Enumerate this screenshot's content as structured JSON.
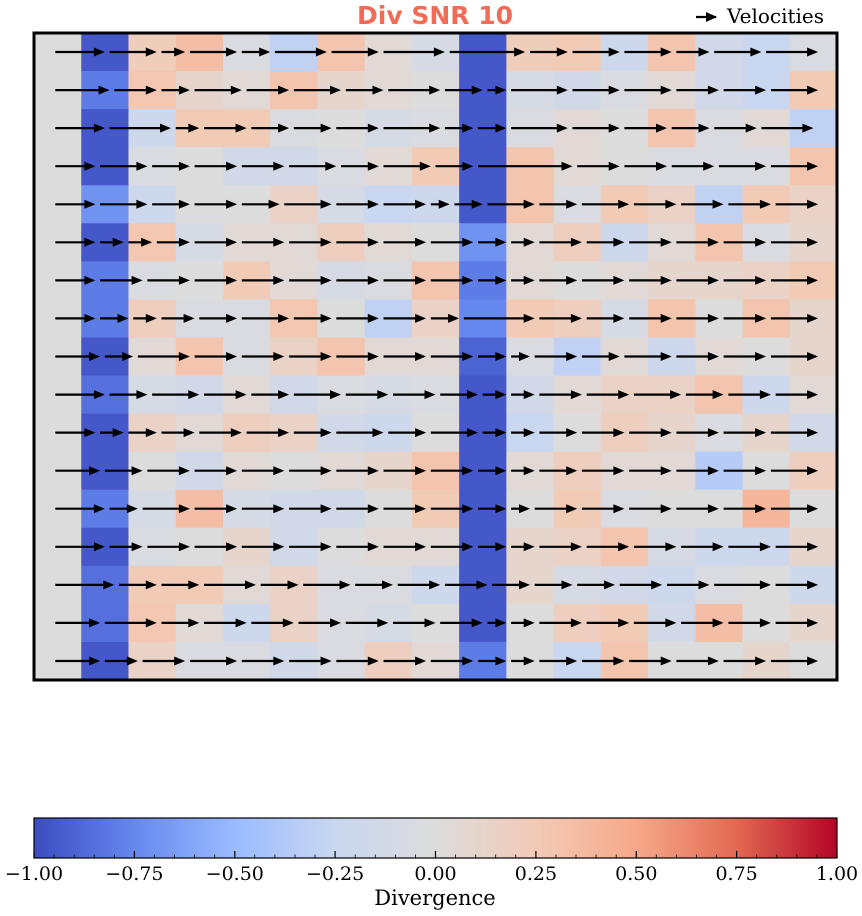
{
  "chart_data": {
    "type": "heatmap",
    "title": "Div SNR 10",
    "title_color": "#f26b55",
    "legend": {
      "label": "Velocities",
      "placement": "top-right"
    },
    "grid": false,
    "rows": 17,
    "cols": 17,
    "divergence": [
      [
        0.0,
        -0.95,
        0.22,
        0.35,
        -0.05,
        -0.3,
        0.3,
        0.05,
        -0.1,
        -0.95,
        0.22,
        0.25,
        -0.2,
        0.3,
        -0.15,
        -0.25,
        -0.05
      ],
      [
        0.0,
        -0.8,
        0.28,
        0.1,
        0.05,
        0.3,
        0.1,
        0.05,
        0.0,
        -0.95,
        -0.1,
        -0.15,
        -0.05,
        0.05,
        -0.15,
        -0.25,
        0.25
      ],
      [
        0.0,
        -0.95,
        -0.2,
        0.25,
        0.25,
        -0.05,
        0.0,
        -0.1,
        -0.05,
        -0.95,
        -0.05,
        0.05,
        0.0,
        0.3,
        -0.05,
        0.05,
        -0.3
      ],
      [
        0.0,
        -0.95,
        -0.05,
        0.0,
        -0.15,
        -0.15,
        -0.05,
        0.05,
        0.25,
        -0.95,
        0.3,
        0.05,
        0.0,
        -0.05,
        -0.05,
        -0.05,
        0.3
      ],
      [
        0.0,
        -0.7,
        -0.2,
        0.0,
        0.0,
        0.15,
        -0.1,
        -0.25,
        -0.2,
        -0.95,
        0.3,
        -0.05,
        0.25,
        0.15,
        -0.3,
        0.25,
        0.15
      ],
      [
        0.0,
        -0.95,
        0.28,
        -0.1,
        0.05,
        0.05,
        0.2,
        0.05,
        0.0,
        -0.7,
        0.05,
        0.2,
        -0.2,
        0.05,
        0.3,
        -0.05,
        0.1
      ],
      [
        0.0,
        -0.8,
        -0.05,
        0.0,
        0.25,
        0.05,
        -0.1,
        -0.05,
        0.3,
        -0.8,
        0.05,
        0.0,
        0.05,
        0.1,
        0.1,
        0.15,
        0.25
      ],
      [
        0.0,
        -0.8,
        0.2,
        -0.05,
        -0.05,
        0.28,
        0.0,
        -0.3,
        0.15,
        -0.75,
        0.25,
        0.2,
        -0.1,
        0.3,
        0.0,
        0.3,
        0.1
      ],
      [
        0.0,
        -0.95,
        0.05,
        0.3,
        -0.05,
        0.15,
        0.3,
        0.05,
        0.05,
        -0.9,
        -0.05,
        -0.3,
        0.05,
        -0.2,
        0.05,
        0.0,
        0.1
      ],
      [
        0.0,
        -0.85,
        -0.1,
        -0.15,
        0.05,
        -0.15,
        -0.05,
        -0.1,
        -0.05,
        -0.95,
        -0.15,
        0.05,
        0.15,
        0.15,
        0.3,
        -0.2,
        0.05
      ],
      [
        0.0,
        -0.95,
        0.15,
        0.05,
        0.2,
        0.15,
        -0.15,
        -0.2,
        0.0,
        -0.95,
        -0.25,
        0.0,
        0.2,
        0.1,
        -0.05,
        0.1,
        -0.15
      ],
      [
        0.0,
        -0.95,
        0.0,
        -0.15,
        0.05,
        0.0,
        0.05,
        0.1,
        0.3,
        -0.95,
        0.05,
        0.2,
        0.05,
        0.05,
        -0.35,
        0.0,
        0.2
      ],
      [
        0.0,
        -0.8,
        -0.1,
        0.35,
        -0.1,
        -0.15,
        -0.15,
        0.0,
        0.25,
        -0.95,
        0.0,
        0.25,
        -0.05,
        0.0,
        0.0,
        0.4,
        0.0
      ],
      [
        0.0,
        -0.95,
        -0.05,
        0.0,
        0.1,
        -0.15,
        0.0,
        0.05,
        0.05,
        -0.95,
        0.1,
        0.15,
        0.3,
        -0.1,
        -0.2,
        -0.2,
        0.1
      ],
      [
        0.0,
        -0.85,
        0.25,
        0.25,
        0.05,
        0.15,
        -0.05,
        -0.05,
        -0.2,
        -0.95,
        0.1,
        -0.1,
        -0.15,
        -0.2,
        -0.05,
        0.0,
        -0.2
      ],
      [
        0.0,
        -0.85,
        0.28,
        0.05,
        -0.2,
        0.15,
        -0.05,
        -0.1,
        0.0,
        -0.95,
        0.0,
        0.2,
        0.25,
        -0.15,
        0.35,
        0.0,
        0.1
      ],
      [
        0.0,
        -0.95,
        0.15,
        -0.05,
        -0.05,
        -0.15,
        -0.05,
        0.2,
        0.05,
        -0.8,
        0.0,
        -0.25,
        0.3,
        0.0,
        0.0,
        0.1,
        0.0
      ]
    ],
    "velocity_row_ends": [
      [
        1.5,
        2.6,
        3.2,
        4.3,
        5.0,
        6.2,
        7.3,
        8.7,
        10.4,
        11.3,
        12.4,
        13.5,
        14.3,
        15.4,
        16.6
      ],
      [
        1.6,
        2.6,
        3.3,
        4.4,
        5.4,
        6.5,
        7.4,
        8.6,
        9.5,
        10.0,
        11.3,
        12.4,
        13.5,
        14.5,
        15.5,
        16.6
      ],
      [
        1.5,
        2.9,
        3.5,
        4.5,
        5.4,
        6.3,
        7.3,
        8.6,
        9.3,
        10.0,
        11.3,
        12.4,
        13.4,
        14.3,
        15.3,
        16.5
      ],
      [
        1.3,
        2.4,
        3.3,
        4.3,
        5.3,
        6.4,
        7.3,
        8.4,
        9.3,
        11.4,
        12.4,
        13.4,
        14.4,
        15.5,
        16.6
      ],
      [
        1.3,
        2.4,
        3.3,
        4.3,
        5.2,
        6.3,
        7.3,
        8.3,
        8.8,
        9.5,
        10.6,
        11.5,
        12.6,
        13.6,
        14.6,
        15.6,
        16.6
      ],
      [
        1.3,
        1.9,
        2.5,
        3.3,
        4.3,
        5.3,
        6.3,
        7.3,
        8.3,
        9.3,
        10.0,
        10.6,
        11.6,
        12.5,
        13.5,
        14.5,
        15.5,
        16.6
      ],
      [
        1.3,
        2.3,
        3.3,
        4.3,
        5.3,
        6.3,
        7.3,
        8.3,
        9.3,
        10.0,
        10.6,
        11.5,
        12.5,
        13.5,
        14.5,
        15.5,
        16.6
      ],
      [
        1.3,
        2.0,
        2.6,
        3.4,
        4.3,
        5.4,
        6.3,
        7.3,
        8.3,
        9.0,
        10.6,
        11.6,
        12.5,
        13.5,
        14.5,
        15.5,
        16.6
      ],
      [
        1.4,
        2.1,
        3.3,
        4.3,
        5.3,
        6.3,
        7.3,
        8.3,
        9.3,
        10.0,
        10.5,
        11.5,
        12.4,
        13.5,
        14.5,
        15.5,
        16.6
      ],
      [
        1.5,
        2.4,
        3.5,
        4.5,
        5.4,
        6.5,
        7.5,
        8.5,
        9.4,
        10.0,
        10.6,
        11.6,
        12.6,
        13.7,
        14.6,
        15.6,
        16.6
      ],
      [
        1.3,
        1.9,
        2.6,
        3.4,
        4.4,
        5.4,
        6.3,
        7.4,
        8.3,
        9.4,
        10.0,
        10.6,
        11.5,
        12.5,
        13.5,
        14.5,
        15.5,
        16.6
      ],
      [
        1.4,
        2.3,
        3.3,
        4.3,
        5.3,
        6.3,
        7.3,
        8.3,
        9.3,
        10.0,
        10.6,
        11.5,
        12.5,
        13.5,
        14.5,
        15.5,
        16.6
      ],
      [
        1.5,
        2.2,
        3.3,
        4.3,
        5.3,
        6.3,
        7.3,
        8.3,
        9.3,
        10.0,
        10.5,
        11.5,
        12.5,
        13.5,
        14.5,
        15.5,
        16.6
      ],
      [
        1.5,
        2.3,
        3.3,
        4.3,
        5.3,
        6.3,
        7.3,
        8.3,
        9.3,
        10.0,
        10.6,
        11.6,
        12.6,
        13.6,
        14.6,
        15.6,
        16.6
      ],
      [
        1.7,
        2.6,
        3.5,
        4.7,
        5.6,
        6.7,
        7.6,
        8.6,
        9.6,
        10.5,
        11.4,
        12.3,
        13.3,
        14.3,
        15.6,
        16.6
      ],
      [
        1.4,
        2.6,
        3.5,
        4.5,
        5.5,
        6.5,
        7.5,
        8.5,
        9.5,
        10.0,
        10.6,
        11.6,
        12.6,
        13.6,
        14.6,
        15.6,
        16.6
      ],
      [
        1.4,
        2.2,
        3.2,
        4.3,
        5.3,
        6.3,
        7.3,
        8.3,
        9.3,
        10.0,
        10.6,
        11.5,
        12.5,
        13.5,
        14.5,
        15.5,
        16.6
      ]
    ],
    "colorbar": {
      "label": "Divergence",
      "range": [
        -1.0,
        1.0
      ],
      "tick_labels": [
        "−1.00",
        "−0.75",
        "−0.50",
        "−0.25",
        "0.00",
        "0.25",
        "0.50",
        "0.75",
        "1.00"
      ],
      "colormap": "coolwarm",
      "colormap_stops": [
        "#3b4cc0",
        "#6688ee",
        "#9abbff",
        "#c9d7f0",
        "#dddcdc",
        "#f2cbb7",
        "#f7a889",
        "#e26952",
        "#b40426"
      ]
    }
  }
}
